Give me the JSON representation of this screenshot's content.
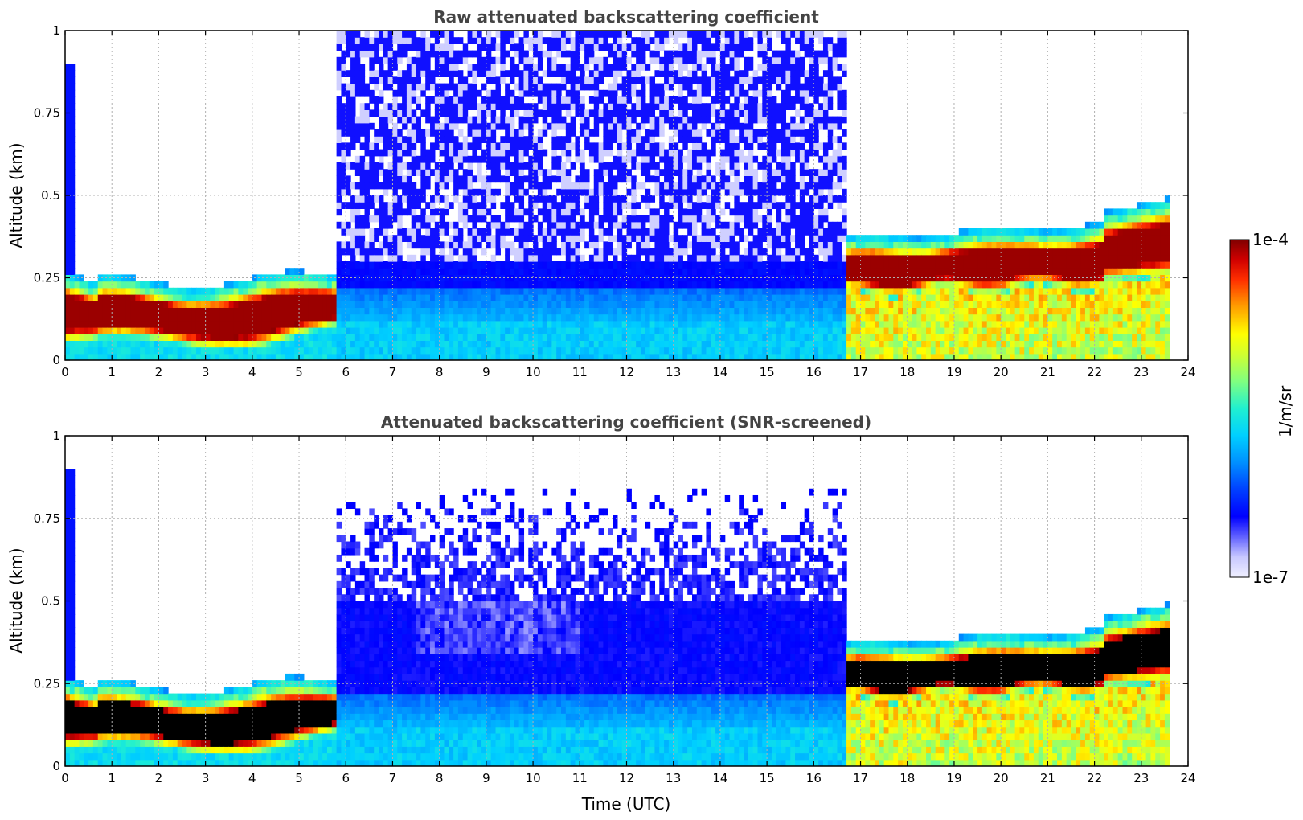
{
  "chart_data": [
    {
      "type": "heatmap",
      "title": "Raw attenuated backscattering coefficient",
      "xlabel": "",
      "ylabel": "Altitude (km)",
      "xlim": [
        0,
        24
      ],
      "ylim": [
        0,
        1
      ],
      "x_ticks": [
        0,
        1,
        2,
        3,
        4,
        5,
        6,
        7,
        8,
        9,
        10,
        11,
        12,
        13,
        14,
        15,
        16,
        17,
        18,
        19,
        20,
        21,
        22,
        23,
        24
      ],
      "y_ticks": [
        0,
        0.25,
        0.5,
        0.75,
        1
      ],
      "y_tick_labels": [
        "0",
        "0.25",
        "0.5",
        "0.75",
        "1"
      ],
      "grid": true,
      "variable": "attenuated backscattering coefficient",
      "segments": [
        {
          "time_start": 0.0,
          "time_end": 5.8,
          "feature": "dense aerosol/cloud layer",
          "layer_base_km": 0.03,
          "layer_top_km": 0.23,
          "peak_km": 0.12
        },
        {
          "time_start": 5.8,
          "time_end": 16.7,
          "feature": "noisy daytime signal, weak aerosol",
          "layer_base_km": 0.0,
          "layer_top_km": 1.0,
          "peak_km": 0.12
        },
        {
          "time_start": 16.7,
          "time_end": 23.6,
          "feature": "elevated dense layer",
          "layer_base_km": 0.2,
          "layer_top_km": 0.47,
          "peak_km": 0.28
        }
      ]
    },
    {
      "type": "heatmap",
      "title": "Attenuated backscattering coefficient (SNR-screened)",
      "xlabel": "Time (UTC)",
      "ylabel": "Altitude (km)",
      "xlim": [
        0,
        24
      ],
      "ylim": [
        0,
        1
      ],
      "x_ticks": [
        0,
        1,
        2,
        3,
        4,
        5,
        6,
        7,
        8,
        9,
        10,
        11,
        12,
        13,
        14,
        15,
        16,
        17,
        18,
        19,
        20,
        21,
        22,
        23,
        24
      ],
      "y_ticks": [
        0,
        0.25,
        0.5,
        0.75,
        1
      ],
      "y_tick_labels": [
        "0",
        "0.25",
        "0.5",
        "0.75",
        "1"
      ],
      "grid": true,
      "variable": "attenuated backscattering coefficient (SNR-screened)",
      "segments": [
        {
          "time_start": 0.0,
          "time_end": 5.8,
          "feature": "dense layer, saturated core",
          "layer_base_km": 0.03,
          "layer_top_km": 0.23,
          "peak_km": 0.12
        },
        {
          "time_start": 5.8,
          "time_end": 16.7,
          "feature": "screened daytime signal up to ~0.8 km",
          "layer_base_km": 0.0,
          "layer_top_km": 0.8,
          "peak_km": 0.12
        },
        {
          "time_start": 16.7,
          "time_end": 23.6,
          "feature": "elevated dense layer, saturated core",
          "layer_base_km": 0.2,
          "layer_top_km": 0.47,
          "peak_km": 0.28
        }
      ]
    }
  ],
  "colorbar": {
    "label": "1/m/sr",
    "max_label": "1e-4",
    "min_label": "1e-7",
    "scale": "log",
    "range": [
      1e-07,
      0.0001
    ]
  }
}
